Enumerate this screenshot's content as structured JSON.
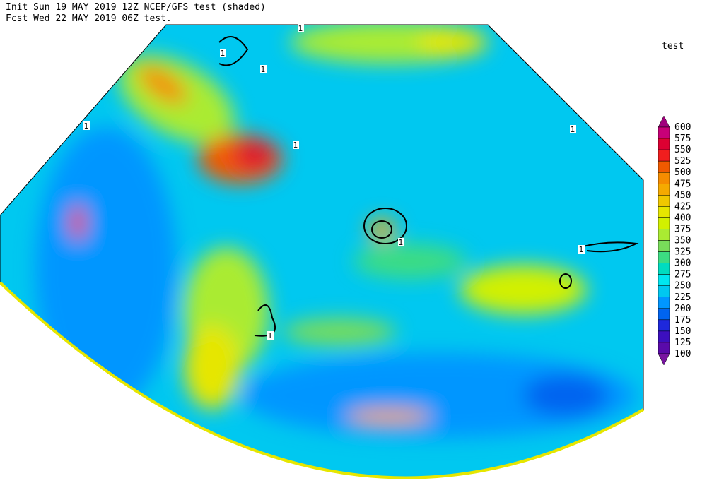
{
  "header": {
    "line1": "Init  Sun 19 MAY 2019 12Z  NCEP/GFS test (shaded)",
    "line2": "Fcst Wed 22 MAY 2019 06Z  test."
  },
  "legend": {
    "title": "test",
    "levels": [
      600,
      575,
      550,
      525,
      500,
      475,
      450,
      425,
      400,
      375,
      350,
      325,
      300,
      275,
      250,
      225,
      200,
      175,
      150,
      125,
      100
    ],
    "colors": [
      "#a0007c",
      "#c80078",
      "#dc0032",
      "#f01e1e",
      "#f05a00",
      "#f58c00",
      "#f5aa00",
      "#f0c800",
      "#e6e600",
      "#d2f000",
      "#aaeb32",
      "#78dc5a",
      "#3cdc82",
      "#00dcc0",
      "#00e6f0",
      "#00c8f0",
      "#0096ff",
      "#0064f0",
      "#1e28dc",
      "#3c0fbe",
      "#5a0aaa",
      "#7814a0"
    ]
  },
  "map": {
    "contour_labels": [
      "1",
      "1",
      "1",
      "1",
      "1",
      "1",
      "1",
      "1",
      "1"
    ]
  }
}
